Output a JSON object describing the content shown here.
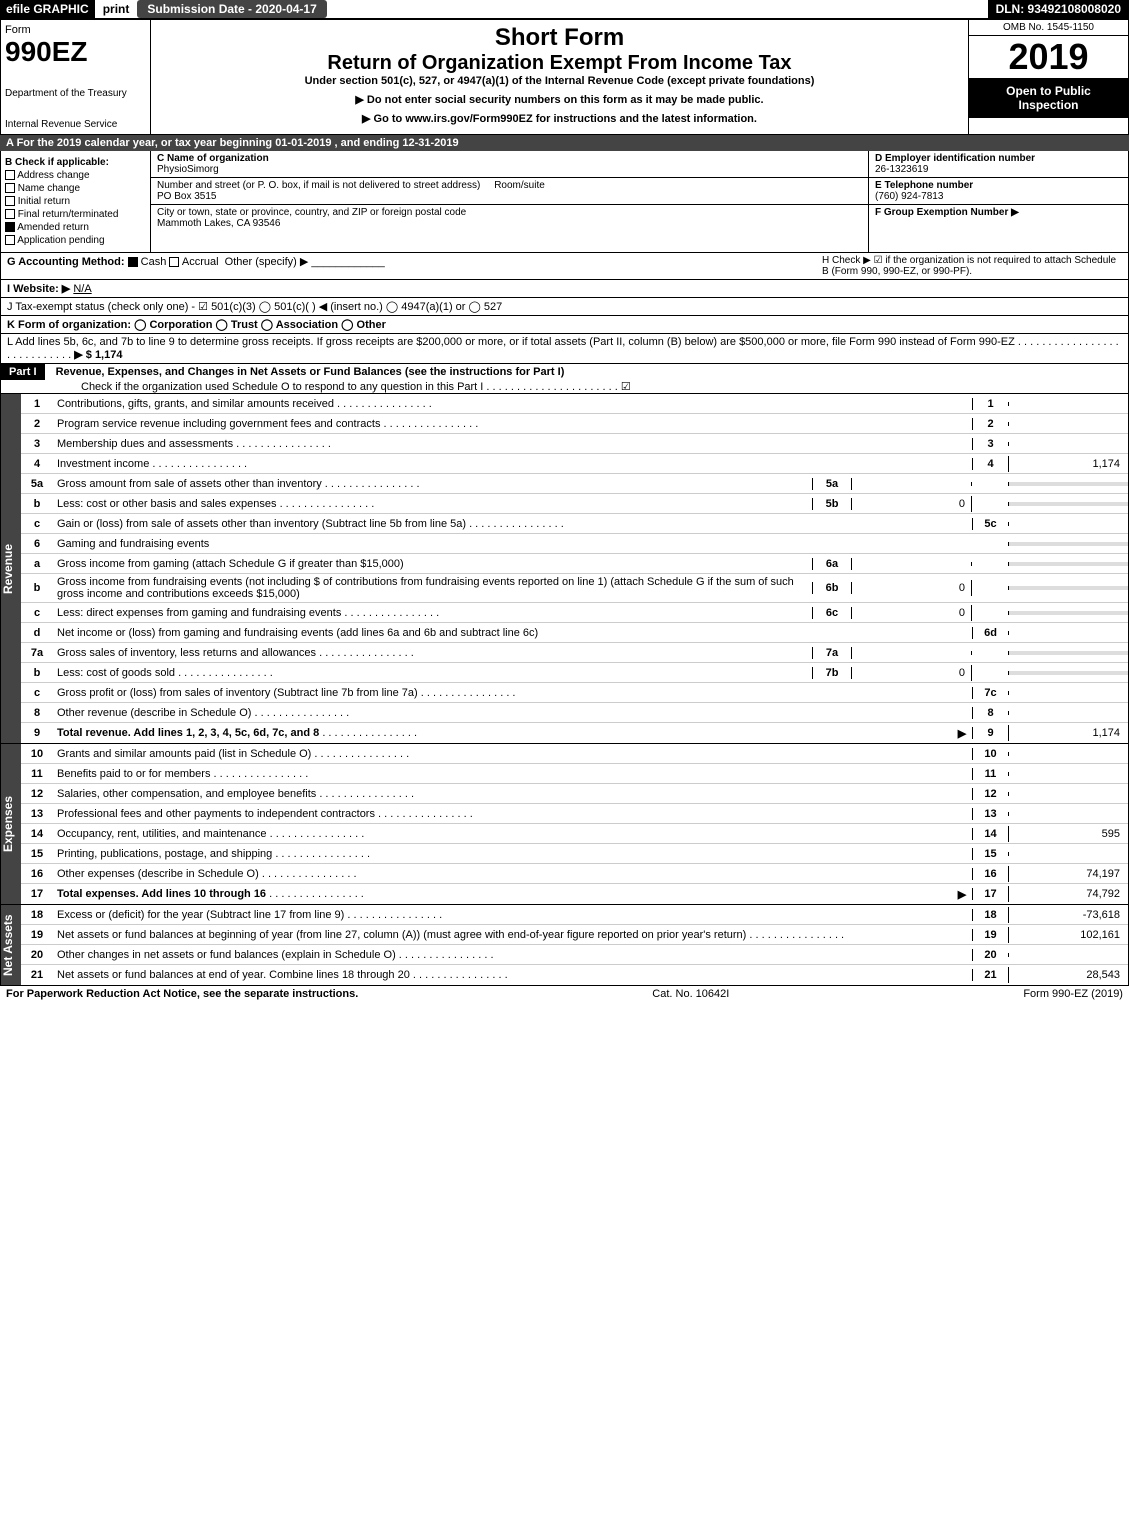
{
  "top": {
    "efile": "efile GRAPHIC",
    "print": "print",
    "submission": "Submission Date - 2020-04-17",
    "dln": "DLN: 93492108008020"
  },
  "header": {
    "form": "Form",
    "formNo": "990EZ",
    "dept": "Department of the Treasury",
    "irs": "Internal Revenue Service",
    "short": "Short Form",
    "title": "Return of Organization Exempt From Income Tax",
    "sub": "Under section 501(c), 527, or 4947(a)(1) of the Internal Revenue Code (except private foundations)",
    "note1": "▶ Do not enter social security numbers on this form as it may be made public.",
    "note2": "▶ Go to www.irs.gov/Form990EZ for instructions and the latest information.",
    "omb": "OMB No. 1545-1150",
    "year": "2019",
    "open": "Open to Public Inspection"
  },
  "period": "A For the 2019 calendar year, or tax year beginning 01-01-2019 , and ending 12-31-2019",
  "sectionB": {
    "title": "B Check if applicable:",
    "items": [
      "Address change",
      "Name change",
      "Initial return",
      "Final return/terminated",
      "Amended return",
      "Application pending"
    ],
    "checked": [
      false,
      false,
      false,
      false,
      true,
      false
    ]
  },
  "sectionC": {
    "nameLabel": "C Name of organization",
    "name": "PhysioSimorg",
    "addrLabel": "Number and street (or P. O. box, if mail is not delivered to street address)",
    "roomLabel": "Room/suite",
    "addr": "PO Box 3515",
    "cityLabel": "City or town, state or province, country, and ZIP or foreign postal code",
    "city": "Mammoth Lakes, CA  93546"
  },
  "sectionD": {
    "label": "D Employer identification number",
    "value": "26-1323619"
  },
  "sectionE": {
    "label": "E Telephone number",
    "value": "(760) 924-7813"
  },
  "sectionF": {
    "label": "F Group Exemption Number  ▶",
    "value": ""
  },
  "sectionG": {
    "label": "G Accounting Method:",
    "cash": "Cash",
    "accrual": "Accrual",
    "other": "Other (specify) ▶"
  },
  "sectionH": {
    "label": "H  Check ▶ ☑ if the organization is not required to attach Schedule B (Form 990, 990-EZ, or 990-PF)."
  },
  "sectionI": {
    "label": "I Website: ▶",
    "value": "N/A"
  },
  "sectionJ": {
    "label": "J Tax-exempt status (check only one) - ☑ 501(c)(3)  ◯ 501(c)( ) ◀ (insert no.)  ◯ 4947(a)(1) or  ◯ 527"
  },
  "sectionK": {
    "label": "K Form of organization:   ◯ Corporation   ◯ Trust   ◯ Association   ◯ Other"
  },
  "sectionL": {
    "label": "L Add lines 5b, 6c, and 7b to line 9 to determine gross receipts. If gross receipts are $200,000 or more, or if total assets (Part II, column (B) below) are $500,000 or more, file Form 990 instead of Form 990-EZ",
    "value": "▶ $ 1,174"
  },
  "part1": {
    "header": "Part I",
    "title": "Revenue, Expenses, and Changes in Net Assets or Fund Balances (see the instructions for Part I)",
    "check": "Check if the organization used Schedule O to respond to any question in this Part I",
    "checkMark": "☑"
  },
  "sideLabels": {
    "revenue": "Revenue",
    "expenses": "Expenses",
    "netassets": "Net Assets"
  },
  "lines": {
    "l1": {
      "no": "1",
      "desc": "Contributions, gifts, grants, and similar amounts received",
      "val": ""
    },
    "l2": {
      "no": "2",
      "desc": "Program service revenue including government fees and contracts",
      "val": ""
    },
    "l3": {
      "no": "3",
      "desc": "Membership dues and assessments",
      "val": ""
    },
    "l4": {
      "no": "4",
      "desc": "Investment income",
      "val": "1,174"
    },
    "l5a": {
      "no": "5a",
      "desc": "Gross amount from sale of assets other than inventory",
      "sub": "5a",
      "subval": ""
    },
    "l5b": {
      "no": "b",
      "desc": "Less: cost or other basis and sales expenses",
      "sub": "5b",
      "subval": "0"
    },
    "l5c": {
      "no": "c",
      "desc": "Gain or (loss) from sale of assets other than inventory (Subtract line 5b from line 5a)",
      "fno": "5c",
      "val": ""
    },
    "l6": {
      "no": "6",
      "desc": "Gaming and fundraising events"
    },
    "l6a": {
      "no": "a",
      "desc": "Gross income from gaming (attach Schedule G if greater than $15,000)",
      "sub": "6a",
      "subval": ""
    },
    "l6b": {
      "no": "b",
      "desc": "Gross income from fundraising events (not including $                   of contributions from fundraising events reported on line 1) (attach Schedule G if the sum of such gross income and contributions exceeds $15,000)",
      "sub": "6b",
      "subval": "0"
    },
    "l6c": {
      "no": "c",
      "desc": "Less: direct expenses from gaming and fundraising events",
      "sub": "6c",
      "subval": "0"
    },
    "l6d": {
      "no": "d",
      "desc": "Net income or (loss) from gaming and fundraising events (add lines 6a and 6b and subtract line 6c)",
      "fno": "6d",
      "val": ""
    },
    "l7a": {
      "no": "7a",
      "desc": "Gross sales of inventory, less returns and allowances",
      "sub": "7a",
      "subval": ""
    },
    "l7b": {
      "no": "b",
      "desc": "Less: cost of goods sold",
      "sub": "7b",
      "subval": "0"
    },
    "l7c": {
      "no": "c",
      "desc": "Gross profit or (loss) from sales of inventory (Subtract line 7b from line 7a)",
      "fno": "7c",
      "val": ""
    },
    "l8": {
      "no": "8",
      "desc": "Other revenue (describe in Schedule O)",
      "val": ""
    },
    "l9": {
      "no": "9",
      "desc": "Total revenue. Add lines 1, 2, 3, 4, 5c, 6d, 7c, and 8",
      "val": "1,174",
      "arrow": "▶"
    },
    "l10": {
      "no": "10",
      "desc": "Grants and similar amounts paid (list in Schedule O)",
      "val": ""
    },
    "l11": {
      "no": "11",
      "desc": "Benefits paid to or for members",
      "val": ""
    },
    "l12": {
      "no": "12",
      "desc": "Salaries, other compensation, and employee benefits",
      "val": ""
    },
    "l13": {
      "no": "13",
      "desc": "Professional fees and other payments to independent contractors",
      "val": ""
    },
    "l14": {
      "no": "14",
      "desc": "Occupancy, rent, utilities, and maintenance",
      "val": "595"
    },
    "l15": {
      "no": "15",
      "desc": "Printing, publications, postage, and shipping",
      "val": ""
    },
    "l16": {
      "no": "16",
      "desc": "Other expenses (describe in Schedule O)",
      "val": "74,197"
    },
    "l17": {
      "no": "17",
      "desc": "Total expenses. Add lines 10 through 16",
      "val": "74,792",
      "arrow": "▶"
    },
    "l18": {
      "no": "18",
      "desc": "Excess or (deficit) for the year (Subtract line 17 from line 9)",
      "val": "-73,618"
    },
    "l19": {
      "no": "19",
      "desc": "Net assets or fund balances at beginning of year (from line 27, column (A)) (must agree with end-of-year figure reported on prior year's return)",
      "val": "102,161"
    },
    "l20": {
      "no": "20",
      "desc": "Other changes in net assets or fund balances (explain in Schedule O)",
      "val": ""
    },
    "l21": {
      "no": "21",
      "desc": "Net assets or fund balances at end of year. Combine lines 18 through 20",
      "val": "28,543"
    }
  },
  "footer": {
    "left": "For Paperwork Reduction Act Notice, see the separate instructions.",
    "mid": "Cat. No. 10642I",
    "right": "Form 990-EZ (2019)"
  },
  "colors": {
    "black": "#000000",
    "darkgrey": "#444444",
    "shade": "#dddddd",
    "white": "#ffffff"
  }
}
